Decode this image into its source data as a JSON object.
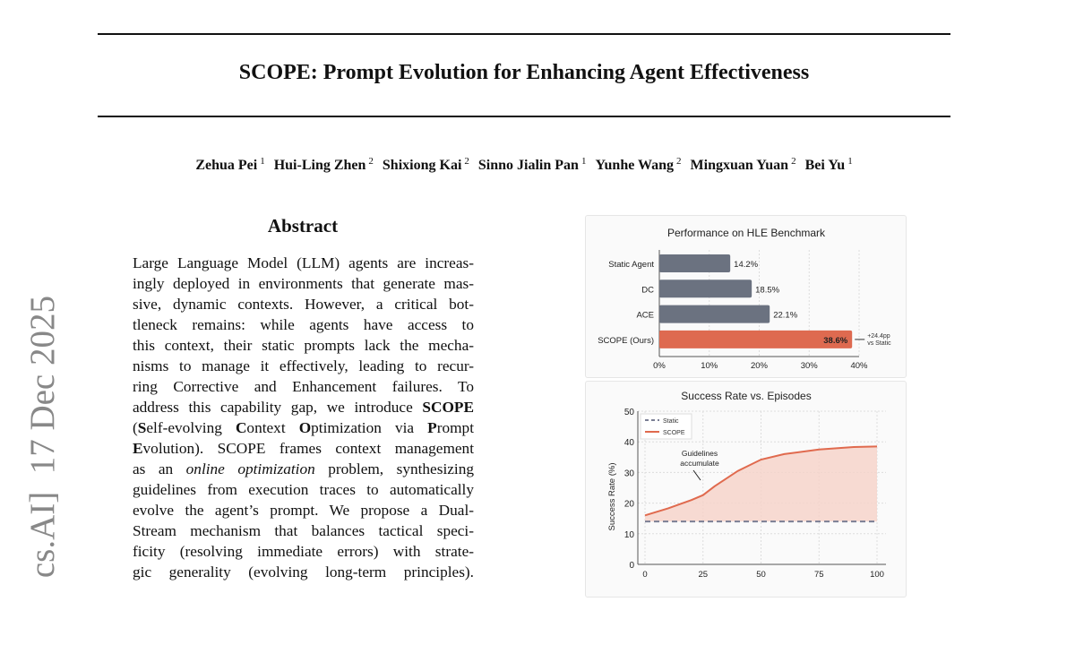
{
  "paper": {
    "title": "SCOPE: Prompt Evolution for Enhancing Agent Effectiveness",
    "authors": [
      {
        "name": "Zehua Pei",
        "aff": "1"
      },
      {
        "name": "Hui-Ling Zhen",
        "aff": "2"
      },
      {
        "name": "Shixiong Kai",
        "aff": "2"
      },
      {
        "name": "Sinno Jialin Pan",
        "aff": "1"
      },
      {
        "name": "Yunhe Wang",
        "aff": "2"
      },
      {
        "name": "Mingxuan Yuan",
        "aff": "2"
      },
      {
        "name": "Bei Yu",
        "aff": "1"
      }
    ],
    "arxiv_stamp": "cs.AI]  17 Dec 2025",
    "abstract_heading": "Abstract",
    "abstract_lines": [
      [
        [
          "n",
          "Large Language Model (LLM) agents are increas-"
        ]
      ],
      [
        [
          "n",
          "ingly deployed in environments that generate mas-"
        ]
      ],
      [
        [
          "n",
          "sive, dynamic contexts. However, a critical bot-"
        ]
      ],
      [
        [
          "n",
          "tleneck remains:  while agents have access to"
        ]
      ],
      [
        [
          "n",
          "this context, their static prompts lack the mecha-"
        ]
      ],
      [
        [
          "n",
          "nisms to manage it effectively, leading to recur-"
        ]
      ],
      [
        [
          "n",
          "ring Corrective and Enhancement failures.  To"
        ]
      ],
      [
        [
          "n",
          "address this capability gap, we introduce "
        ],
        [
          "b",
          "SCOPE"
        ]
      ],
      [
        [
          "n",
          "("
        ],
        [
          "b",
          "S"
        ],
        [
          "n",
          "elf-evolving "
        ],
        [
          "b",
          "C"
        ],
        [
          "n",
          "ontext "
        ],
        [
          "b",
          "O"
        ],
        [
          "n",
          "ptimization via "
        ],
        [
          "b",
          "P"
        ],
        [
          "n",
          "rompt"
        ]
      ],
      [
        [
          "b",
          "E"
        ],
        [
          "n",
          "volution). SCOPE frames context management"
        ]
      ],
      [
        [
          "n",
          "as an "
        ],
        [
          "i",
          "online optimization"
        ],
        [
          "n",
          " problem, synthesizing"
        ]
      ],
      [
        [
          "n",
          "guidelines from execution traces to automatically"
        ]
      ],
      [
        [
          "n",
          "evolve the agent’s prompt.  We propose a Dual-"
        ]
      ],
      [
        [
          "n",
          "Stream mechanism that balances tactical speci-"
        ]
      ],
      [
        [
          "n",
          "ficity (resolving immediate errors) with strate-"
        ]
      ],
      [
        [
          "n",
          "gic generality (evolving long-term principles)."
        ]
      ]
    ]
  },
  "chart_data": [
    {
      "type": "bar",
      "orientation": "horizontal",
      "title": "Performance on HLE Benchmark",
      "categories": [
        "Static Agent",
        "DC",
        "ACE",
        "SCOPE (Ours)"
      ],
      "values": [
        14.2,
        18.5,
        22.1,
        38.6
      ],
      "value_labels": [
        "14.2%",
        "18.5%",
        "22.1%",
        "38.6%"
      ],
      "xlim": [
        0,
        40
      ],
      "xticks": [
        "0%",
        "10%",
        "20%",
        "30%",
        "40%"
      ],
      "grid": true,
      "annotation": [
        "+24.4pp",
        "vs Static"
      ],
      "colors": {
        "baseline": "#6b7280",
        "highlight": "#de6a50"
      }
    },
    {
      "type": "line",
      "title": "Success Rate vs. Episodes",
      "ylabel": "Success Rate (%)",
      "ylim": [
        0,
        50
      ],
      "xlim": [
        0,
        100
      ],
      "xticks": [
        0,
        25,
        50,
        75,
        100
      ],
      "yticks": [
        0,
        10,
        20,
        30,
        40,
        50
      ],
      "grid": true,
      "legend": "top-left",
      "annotation": [
        "Guidelines",
        "accumulate"
      ],
      "series": [
        {
          "name": "Static",
          "style": "dashed",
          "color": "#7b7f95",
          "x": [
            0,
            100
          ],
          "y": [
            14,
            14
          ]
        },
        {
          "name": "SCOPE",
          "style": "solid",
          "color": "#e06a4e",
          "fill": "#f6d3ca",
          "x": [
            0,
            10,
            20,
            25,
            30,
            40,
            50,
            60,
            75,
            90,
            100
          ],
          "y": [
            16,
            18.3,
            21,
            22.6,
            25.5,
            30.5,
            34.2,
            36,
            37.5,
            38.3,
            38.5
          ]
        }
      ]
    }
  ]
}
